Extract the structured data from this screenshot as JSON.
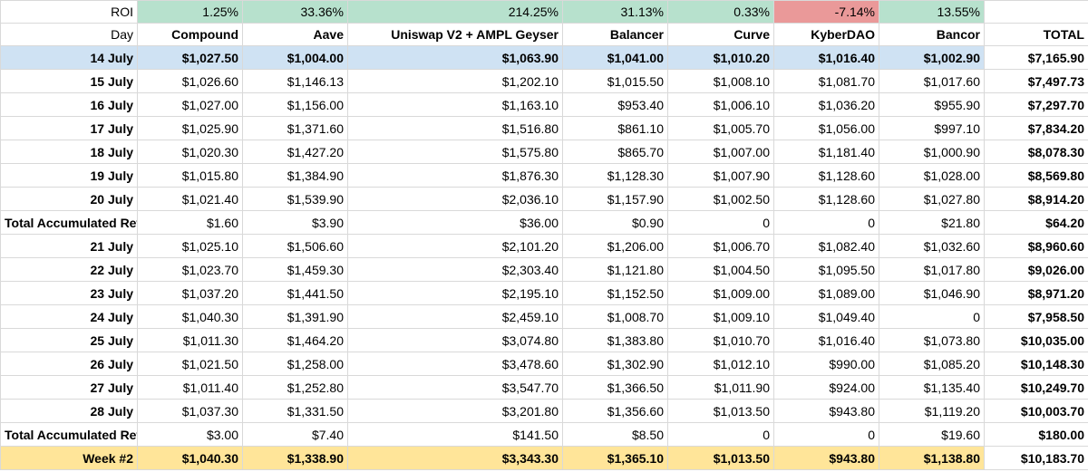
{
  "roi": {
    "label": "ROI",
    "values": [
      "1.25%",
      "33.36%",
      "214.25%",
      "31.13%",
      "0.33%",
      "-7.14%",
      "13.55%"
    ]
  },
  "headers": [
    "Day",
    "Compound",
    "Aave",
    "Uniswap V2 + AMPL Geyser",
    "Balancer",
    "Curve",
    "KyberDAO",
    "Bancor",
    "TOTAL"
  ],
  "rows": [
    {
      "day": "14 July",
      "cells": [
        "$1,027.50",
        "$1,004.00",
        "$1,063.90",
        "$1,041.00",
        "$1,010.20",
        "$1,016.40",
        "$1,002.90"
      ],
      "total": "$7,165.90"
    },
    {
      "day": "15 July",
      "cells": [
        "$1,026.60",
        "$1,146.13",
        "$1,202.10",
        "$1,015.50",
        "$1,008.10",
        "$1,081.70",
        "$1,017.60"
      ],
      "total": "$7,497.73"
    },
    {
      "day": "16 July",
      "cells": [
        "$1,027.00",
        "$1,156.00",
        "$1,163.10",
        "$953.40",
        "$1,006.10",
        "$1,036.20",
        "$955.90"
      ],
      "total": "$7,297.70"
    },
    {
      "day": "17 July",
      "cells": [
        "$1,025.90",
        "$1,371.60",
        "$1,516.80",
        "$861.10",
        "$1,005.70",
        "$1,056.00",
        "$997.10"
      ],
      "total": "$7,834.20"
    },
    {
      "day": "18 July",
      "cells": [
        "$1,020.30",
        "$1,427.20",
        "$1,575.80",
        "$865.70",
        "$1,007.00",
        "$1,181.40",
        "$1,000.90"
      ],
      "total": "$8,078.30"
    },
    {
      "day": "19 July",
      "cells": [
        "$1,015.80",
        "$1,384.90",
        "$1,876.30",
        "$1,128.30",
        "$1,007.90",
        "$1,128.60",
        "$1,028.00"
      ],
      "total": "$8,569.80"
    },
    {
      "day": "20 July",
      "cells": [
        "$1,021.40",
        "$1,539.90",
        "$2,036.10",
        "$1,157.90",
        "$1,002.50",
        "$1,128.60",
        "$1,027.80"
      ],
      "total": "$8,914.20"
    },
    {
      "day": "Total Accumulated Rewards",
      "cells": [
        "$1.60",
        "$3.90",
        "$36.00",
        "$0.90",
        "0",
        "0",
        "$21.80"
      ],
      "total": "$64.20"
    },
    {
      "day": "21 July",
      "cells": [
        "$1,025.10",
        "$1,506.60",
        "$2,101.20",
        "$1,206.00",
        "$1,006.70",
        "$1,082.40",
        "$1,032.60"
      ],
      "total": "$8,960.60"
    },
    {
      "day": "22 July",
      "cells": [
        "$1,023.70",
        "$1,459.30",
        "$2,303.40",
        "$1,121.80",
        "$1,004.50",
        "$1,095.50",
        "$1,017.80"
      ],
      "total": "$9,026.00"
    },
    {
      "day": "23 July",
      "cells": [
        "$1,037.20",
        "$1,441.50",
        "$2,195.10",
        "$1,152.50",
        "$1,009.00",
        "$1,089.00",
        "$1,046.90"
      ],
      "total": "$8,971.20"
    },
    {
      "day": "24 July",
      "cells": [
        "$1,040.30",
        "$1,391.90",
        "$2,459.10",
        "$1,008.70",
        "$1,009.10",
        "$1,049.40",
        "0"
      ],
      "total": "$7,958.50"
    },
    {
      "day": "25 July",
      "cells": [
        "$1,011.30",
        "$1,464.20",
        "$3,074.80",
        "$1,383.80",
        "$1,010.70",
        "$1,016.40",
        "$1,073.80"
      ],
      "total": "$10,035.00"
    },
    {
      "day": "26 July",
      "cells": [
        "$1,021.50",
        "$1,258.00",
        "$3,478.60",
        "$1,302.90",
        "$1,012.10",
        "$990.00",
        "$1,085.20"
      ],
      "total": "$10,148.30"
    },
    {
      "day": "27 July",
      "cells": [
        "$1,011.40",
        "$1,252.80",
        "$3,547.70",
        "$1,366.50",
        "$1,011.90",
        "$924.00",
        "$1,135.40"
      ],
      "total": "$10,249.70"
    },
    {
      "day": "28 July",
      "cells": [
        "$1,037.30",
        "$1,331.50",
        "$3,201.80",
        "$1,356.60",
        "$1,013.50",
        "$943.80",
        "$1,119.20"
      ],
      "total": "$10,003.70"
    },
    {
      "day": "Total Accumulated Rewards",
      "cells": [
        "$3.00",
        "$7.40",
        "$141.50",
        "$8.50",
        "0",
        "0",
        "$19.60"
      ],
      "total": "$180.00"
    },
    {
      "day": "Week #2",
      "cells": [
        "$1,040.30",
        "$1,338.90",
        "$3,343.30",
        "$1,365.10",
        "$1,013.50",
        "$943.80",
        "$1,138.80"
      ],
      "total": "$10,183.70"
    }
  ],
  "colors": {
    "roi_positive": "#b7e1cd",
    "roi_negative": "#ea9999",
    "first_row": "#cfe2f3",
    "week_row": "#ffe599"
  }
}
